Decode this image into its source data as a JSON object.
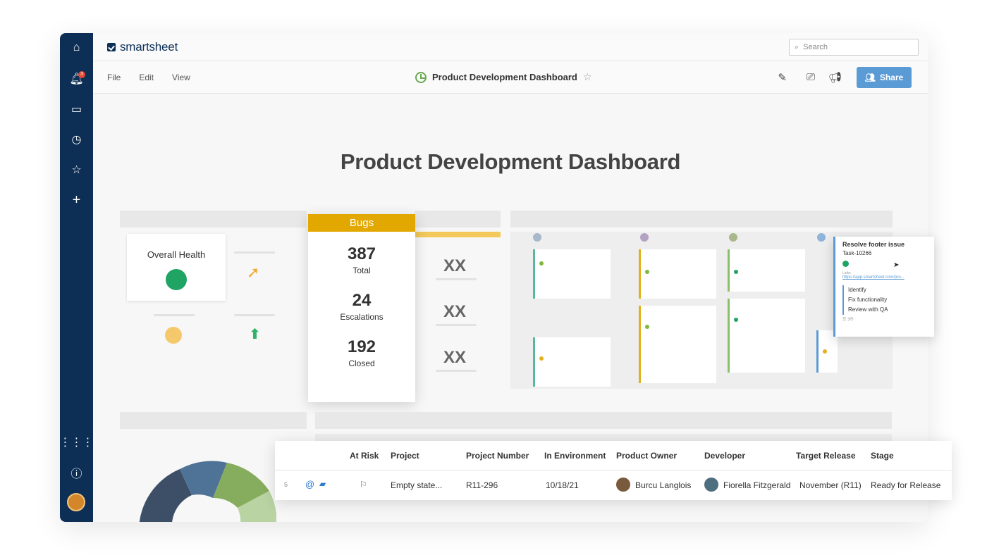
{
  "app": {
    "logo_text": "smartsheet",
    "search_placeholder": "Search"
  },
  "rail": {
    "notification_count": "3"
  },
  "menu": [
    "File",
    "Edit",
    "View"
  ],
  "document": {
    "title": "Product Development Dashboard"
  },
  "toolbar": {
    "share_label": "Share"
  },
  "dashboard": {
    "heading": "Product Development Dashboard",
    "health": {
      "label": "Overall Health",
      "status_color": "#1fa463"
    },
    "bugs": {
      "title": "Bugs",
      "metrics": [
        {
          "value": "387",
          "label": "Total"
        },
        {
          "value": "24",
          "label": "Escalations"
        },
        {
          "value": "192",
          "label": "Closed"
        }
      ],
      "placeholders": [
        "XX",
        "XX",
        "XX"
      ]
    },
    "card": {
      "title": "Resolve footer issue",
      "task_id": "Task-10266",
      "links_label": "Links",
      "link": "https://app.smartsheet.com/pro...",
      "checklist": [
        "Identify",
        "Fix functionality",
        "Review with QA"
      ],
      "progress": "3/5"
    }
  },
  "grid": {
    "columns": [
      "At Risk",
      "Project",
      "Project Number",
      "In Environment",
      "Product Owner",
      "Developer",
      "Target Release",
      "Stage"
    ],
    "row": {
      "row_number": "5",
      "project": "Empty state...",
      "project_number": "R11-296",
      "in_environment": "10/18/21",
      "product_owner": "Burcu Langlois",
      "developer": "Fiorella Fitzgerald",
      "target_release": "November (R11)",
      "stage": "Ready for Release"
    }
  },
  "colors": {
    "brand_navy": "#0d2f56",
    "accent_blue": "#5b9bd5",
    "bugs_gold": "#e2a800",
    "green": "#1fa463",
    "yellow": "#f5c96b"
  }
}
